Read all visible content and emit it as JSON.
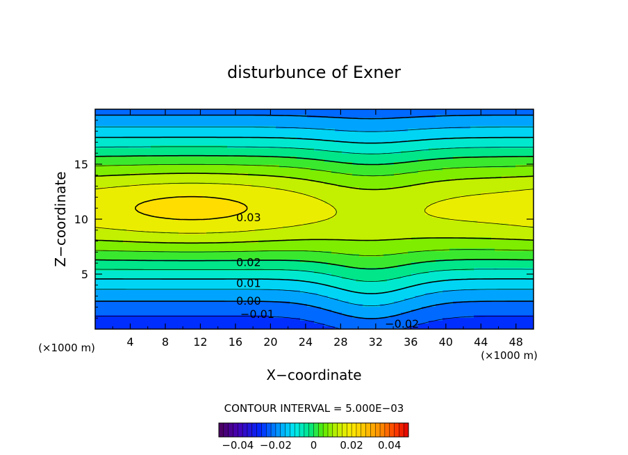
{
  "chart_data": {
    "type": "contour",
    "title": "disturbunce of Exner",
    "xlabel": "X−coordinate",
    "ylabel": "Z−coordinate",
    "x_unit_left": "(×1000 m)",
    "x_unit_right": "(×1000 m)",
    "xlim": [
      0,
      50
    ],
    "ylim": [
      0,
      20
    ],
    "x_ticks": [
      "4",
      "8",
      "12",
      "16",
      "20",
      "24",
      "28",
      "32",
      "36",
      "40",
      "44",
      "48"
    ],
    "x_tick_values": [
      4,
      8,
      12,
      16,
      20,
      24,
      28,
      32,
      36,
      40,
      44,
      48
    ],
    "y_ticks": [
      "5",
      "10",
      "15"
    ],
    "y_tick_values": [
      5,
      10,
      15
    ],
    "contour_interval_text": "CONTOUR INTERVAL = 5.000E−03",
    "contour_interval": 0.005,
    "contour_labels": [
      {
        "text": "0.03",
        "x": 17.5,
        "z": 10.2
      },
      {
        "text": "0.02",
        "x": 17.5,
        "z": 6.1
      },
      {
        "text": "0.01",
        "x": 17.5,
        "z": 4.2
      },
      {
        "text": "0.00",
        "x": 17.5,
        "z": 2.6
      },
      {
        "text": "−0.01",
        "x": 18.5,
        "z": 1.4
      },
      {
        "text": "−0.02",
        "x": 35.0,
        "z": 0.5
      }
    ],
    "colorbar": {
      "range": [
        -0.05,
        0.05
      ],
      "tick_labels": [
        "−0.04",
        "−0.02",
        "0",
        "0.02",
        "0.04"
      ],
      "tick_values": [
        -0.04,
        -0.02,
        0,
        0.02,
        0.04
      ]
    }
  }
}
